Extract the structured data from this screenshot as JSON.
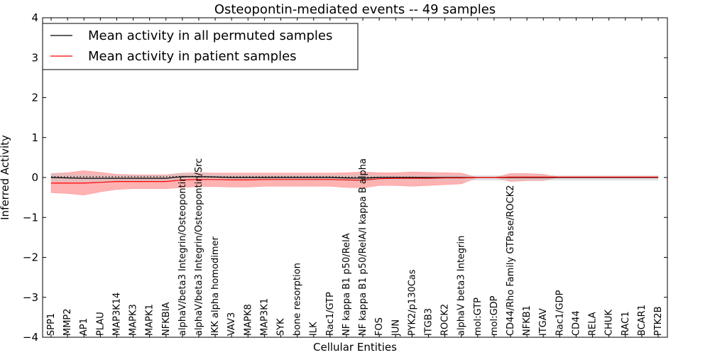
{
  "chart_data": {
    "type": "line",
    "title": "Osteopontin-mediated events -- 49 samples",
    "xlabel": "Cellular Entities",
    "ylabel": "Inferred Activity",
    "ylim": [
      -4,
      4
    ],
    "yticks": [
      4,
      3,
      2,
      1,
      0,
      -1,
      -2,
      -3,
      -4
    ],
    "ytick_labels": [
      "4",
      "3",
      "2",
      "1",
      "0",
      "−1",
      "−2",
      "−3",
      "−4"
    ],
    "legend_location": "top-left",
    "categories": [
      "SPP1",
      "MMP2",
      "AP1",
      "PLAU",
      "MAP3K14",
      "MAPK3",
      "MAPK1",
      "NFKBIA",
      "alphaV/beta3 Integrin/Osteopontin",
      "alphaV/beta3 Integrin/Osteopontin/Src",
      "IKK alpha homodimer",
      "VAV3",
      "MAPK8",
      "MAP3K1",
      "SYK",
      "bone resorption",
      "ILK",
      "Rac1/GTP",
      "NF kappa B1 p50/RelA",
      "NF kappa B1 p50/RelA/I kappa B alpha",
      "FOS",
      "JUN",
      "PYK2/p130Cas",
      "ITGB3",
      "ROCK2",
      "alphaV beta3 Integrin",
      "mol:GTP",
      "mol:GDP",
      "CD44/Rho Family GTPase/ROCK2",
      "NFKB1",
      "ITGAV",
      "Rac1/GDP",
      "CD44",
      "RELA",
      "CHUK",
      "RAC1",
      "BCAR1",
      "PTK2B"
    ],
    "series": [
      {
        "name": "Mean activity in all permuted samples",
        "color": "#000000",
        "band_color": "#c8c8c8",
        "values": [
          0.0,
          -0.01,
          -0.02,
          -0.02,
          -0.02,
          -0.02,
          -0.02,
          -0.02,
          0.02,
          0.02,
          0.01,
          0.0,
          0.0,
          0.0,
          0.0,
          0.0,
          0.0,
          0.0,
          -0.01,
          -0.02,
          0.0,
          0.0,
          0.0,
          0.0,
          0.0,
          0.0,
          0.0,
          0.0,
          0.0,
          0.0,
          0.0,
          0.0,
          0.0,
          0.0,
          0.0,
          0.0,
          0.0,
          0.0
        ],
        "band_upper": [
          0.1,
          0.08,
          0.07,
          0.06,
          0.05,
          0.05,
          0.05,
          0.05,
          0.1,
          0.1,
          0.08,
          0.07,
          0.07,
          0.07,
          0.07,
          0.07,
          0.07,
          0.07,
          0.06,
          0.06,
          0.05,
          0.05,
          0.05,
          0.05,
          0.05,
          0.05,
          0.05,
          0.05,
          0.05,
          0.05,
          0.05,
          0.05,
          0.05,
          0.05,
          0.05,
          0.05,
          0.05,
          0.05
        ],
        "band_lower": [
          -0.1,
          -0.1,
          -0.1,
          -0.1,
          -0.1,
          -0.1,
          -0.1,
          -0.1,
          -0.06,
          -0.06,
          -0.07,
          -0.07,
          -0.07,
          -0.07,
          -0.07,
          -0.07,
          -0.07,
          -0.07,
          -0.08,
          -0.1,
          -0.07,
          -0.07,
          -0.07,
          -0.07,
          -0.07,
          -0.07,
          -0.07,
          -0.07,
          -0.07,
          -0.07,
          -0.07,
          -0.07,
          -0.07,
          -0.07,
          -0.07,
          -0.07,
          -0.07,
          -0.07
        ]
      },
      {
        "name": "Mean activity in patient samples",
        "color": "#ff0000",
        "band_color": "#ff6666",
        "values": [
          -0.14,
          -0.14,
          -0.14,
          -0.12,
          -0.1,
          -0.1,
          -0.1,
          -0.1,
          -0.06,
          -0.05,
          -0.05,
          -0.06,
          -0.06,
          -0.05,
          -0.05,
          -0.05,
          -0.05,
          -0.05,
          -0.06,
          -0.07,
          -0.03,
          -0.02,
          -0.02,
          -0.02,
          -0.01,
          -0.01,
          0.0,
          0.0,
          0.01,
          0.01,
          0.01,
          0.01,
          0.01,
          0.01,
          0.01,
          0.01,
          0.01,
          0.01
        ],
        "band_upper": [
          0.1,
          0.12,
          0.17,
          0.13,
          0.08,
          0.07,
          0.07,
          0.07,
          0.11,
          0.12,
          0.11,
          0.11,
          0.11,
          0.11,
          0.11,
          0.11,
          0.11,
          0.11,
          0.12,
          0.14,
          0.12,
          0.12,
          0.14,
          0.13,
          0.12,
          0.11,
          0.0,
          0.0,
          0.1,
          0.1,
          0.08,
          0.01,
          0.01,
          0.01,
          0.01,
          0.01,
          0.01,
          0.01
        ],
        "band_lower": [
          -0.38,
          -0.4,
          -0.44,
          -0.36,
          -0.3,
          -0.28,
          -0.28,
          -0.28,
          -0.25,
          -0.23,
          -0.23,
          -0.24,
          -0.24,
          -0.22,
          -0.22,
          -0.22,
          -0.22,
          -0.22,
          -0.25,
          -0.26,
          -0.2,
          -0.2,
          -0.22,
          -0.2,
          -0.18,
          -0.16,
          0.0,
          0.0,
          -0.1,
          -0.08,
          -0.08,
          0.01,
          0.01,
          0.01,
          0.01,
          0.01,
          0.01,
          0.01
        ]
      }
    ],
    "reference_line": {
      "style": "dotted",
      "values": [
        0.02,
        0.02,
        0.02,
        0.02,
        0.02,
        0.02,
        0.02,
        0.02,
        0.03,
        0.03,
        0.02,
        0.02,
        0.02,
        0.02,
        0.02,
        0.02,
        0.02,
        0.02,
        0.01,
        0.01,
        0.01,
        0.01,
        0.01,
        0.0,
        0.0,
        0.0,
        0.0,
        0.0,
        0.0,
        0.0,
        0.0,
        0.0,
        0.0,
        0.0,
        0.0,
        0.0,
        0.0,
        0.0
      ]
    }
  }
}
